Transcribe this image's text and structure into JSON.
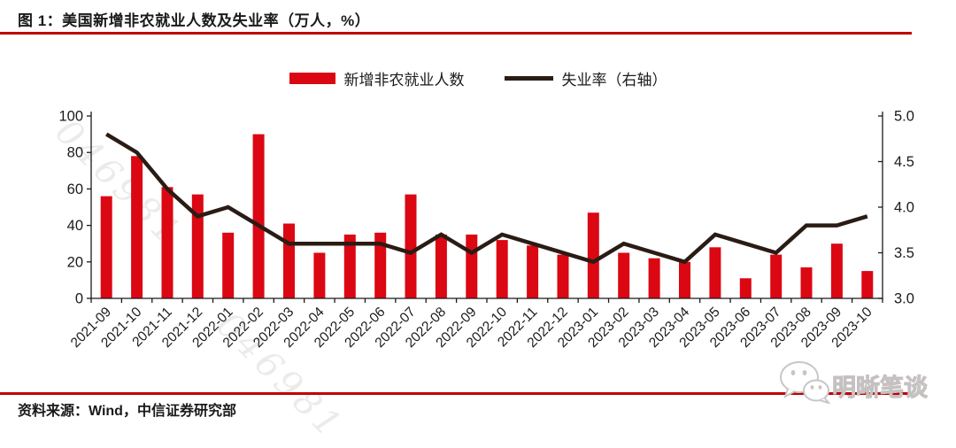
{
  "header": {
    "title": "图 1：美国新增非农就业人数及失业率（万人，%）"
  },
  "legend": {
    "bar_label": "新增非农就业人数",
    "line_label": "失业率（右轴）"
  },
  "footer": {
    "source": "资料来源：Wind，中信证券研究部"
  },
  "watermark": {
    "diagonal_text": "046981",
    "brand_text": "明晰笔谈",
    "brand_icon": "wechat-icon"
  },
  "colors": {
    "bar": "#db0712",
    "line": "#2a1c15",
    "rule": "#c00000",
    "axis": "#1a1a1a",
    "watermark": "#ecebea"
  },
  "chart_data": {
    "type": "bar+line",
    "title": "美国新增非农就业人数及失业率（万人，%）",
    "categories": [
      "2021-09",
      "2021-10",
      "2021-11",
      "2021-12",
      "2022-01",
      "2022-02",
      "2022-03",
      "2022-04",
      "2022-05",
      "2022-06",
      "2022-07",
      "2022-08",
      "2022-09",
      "2022-10",
      "2022-11",
      "2022-12",
      "2023-01",
      "2023-02",
      "2023-03",
      "2023-04",
      "2023-05",
      "2023-06",
      "2023-07",
      "2023-08",
      "2023-09",
      "2023-10"
    ],
    "series": [
      {
        "name": "新增非农就业人数",
        "type": "bar",
        "axis": "left",
        "values": [
          56,
          78,
          61,
          57,
          36,
          90,
          41,
          25,
          35,
          36,
          57,
          35,
          35,
          32,
          29,
          24,
          47,
          25,
          22,
          20,
          28,
          11,
          24,
          17,
          30,
          15
        ]
      },
      {
        "name": "失业率（右轴）",
        "type": "line",
        "axis": "right",
        "values": [
          4.8,
          4.6,
          4.2,
          3.9,
          4.0,
          3.8,
          3.6,
          3.6,
          3.6,
          3.6,
          3.5,
          3.7,
          3.5,
          3.7,
          3.6,
          3.5,
          3.4,
          3.6,
          3.5,
          3.4,
          3.7,
          3.6,
          3.5,
          3.8,
          3.8,
          3.9
        ]
      }
    ],
    "left_axis": {
      "range": [
        0,
        100
      ],
      "ticks": [
        0,
        20,
        40,
        60,
        80,
        100
      ],
      "tick_labels": [
        "0",
        "20",
        "40",
        "60",
        "80",
        "100"
      ]
    },
    "right_axis": {
      "range": [
        3.0,
        5.0
      ],
      "ticks": [
        3.0,
        3.5,
        4.0,
        4.5,
        5.0
      ],
      "tick_labels": [
        "3.0",
        "3.5",
        "4.0",
        "4.5",
        "5.0"
      ]
    },
    "grid": false,
    "legend_position": "top-center"
  }
}
